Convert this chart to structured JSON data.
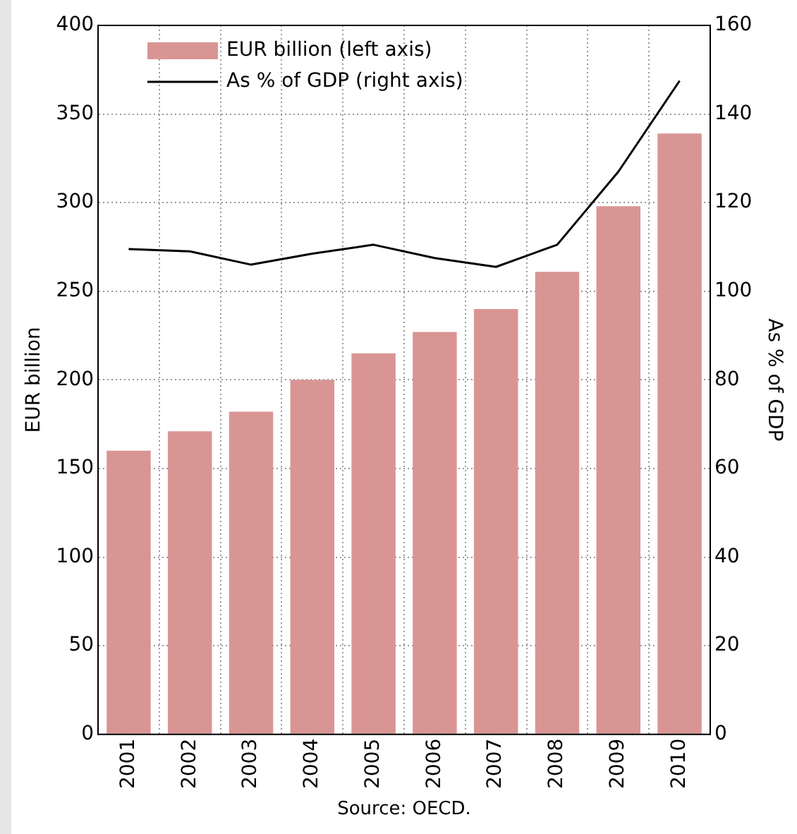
{
  "chart_data": {
    "type": "bar",
    "categories": [
      "2001",
      "2002",
      "2003",
      "2004",
      "2005",
      "2006",
      "2007",
      "2008",
      "2009",
      "2010"
    ],
    "series": [
      {
        "name": "EUR billion (left axis)",
        "color": "#d99594",
        "values": [
          160,
          171,
          182,
          200,
          215,
          227,
          240,
          261,
          298,
          339
        ]
      },
      {
        "name": "As % of GDP (right axis)",
        "type": "line",
        "axis": "y2",
        "color": "#000000",
        "marker": "none",
        "values": [
          109.5,
          109,
          106,
          108.5,
          110.5,
          107.5,
          105.5,
          110.5,
          127,
          147.5
        ]
      }
    ],
    "ylabel": "EUR billion",
    "y2label": "As % of GDP",
    "ylim": [
      0,
      400
    ],
    "yticks": [
      0,
      50,
      100,
      150,
      200,
      250,
      300,
      350,
      400
    ],
    "y2lim": [
      0,
      160
    ],
    "y2ticks": [
      0,
      20,
      40,
      60,
      80,
      100,
      120,
      140,
      160
    ],
    "grid": true,
    "legend": "top left",
    "annotations": [
      "Source: OECD."
    ]
  }
}
